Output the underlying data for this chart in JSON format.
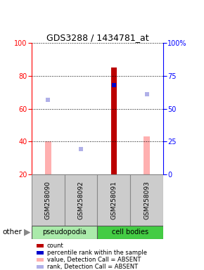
{
  "title": "GDS3288 / 1434781_at",
  "samples": [
    "GSM258090",
    "GSM258092",
    "GSM258091",
    "GSM258093"
  ],
  "groups": [
    "pseudopodia",
    "pseudopodia",
    "cell bodies",
    "cell bodies"
  ],
  "bar_colors_absent": "#ffb0b0",
  "bar_colors_count": "#bb0000",
  "rank_absent_color": "#b0b0e8",
  "rank_present_color": "#0000cc",
  "count_values": [
    0,
    0,
    85,
    0
  ],
  "count_absent": [
    true,
    true,
    false,
    true
  ],
  "value_bars": [
    40,
    0,
    0,
    43
  ],
  "value_absent": [
    true,
    true,
    false,
    true
  ],
  "percentile_rank_values": [
    57,
    19,
    68,
    61
  ],
  "percentile_rank_absent": [
    true,
    true,
    false,
    true
  ],
  "ylim_left": [
    20,
    100
  ],
  "ylim_right": [
    0,
    100
  ],
  "yticks_left": [
    20,
    40,
    60,
    80,
    100
  ],
  "yticks_right": [
    0,
    25,
    50,
    75,
    100
  ],
  "ytick_labels_right": [
    "0",
    "25",
    "50",
    "75",
    "100%"
  ],
  "background_color": "#ffffff",
  "legend_items": [
    {
      "label": "count",
      "color": "#bb0000"
    },
    {
      "label": "percentile rank within the sample",
      "color": "#0000cc"
    },
    {
      "label": "value, Detection Call = ABSENT",
      "color": "#ffb0b0"
    },
    {
      "label": "rank, Detection Call = ABSENT",
      "color": "#b0b0e8"
    }
  ]
}
